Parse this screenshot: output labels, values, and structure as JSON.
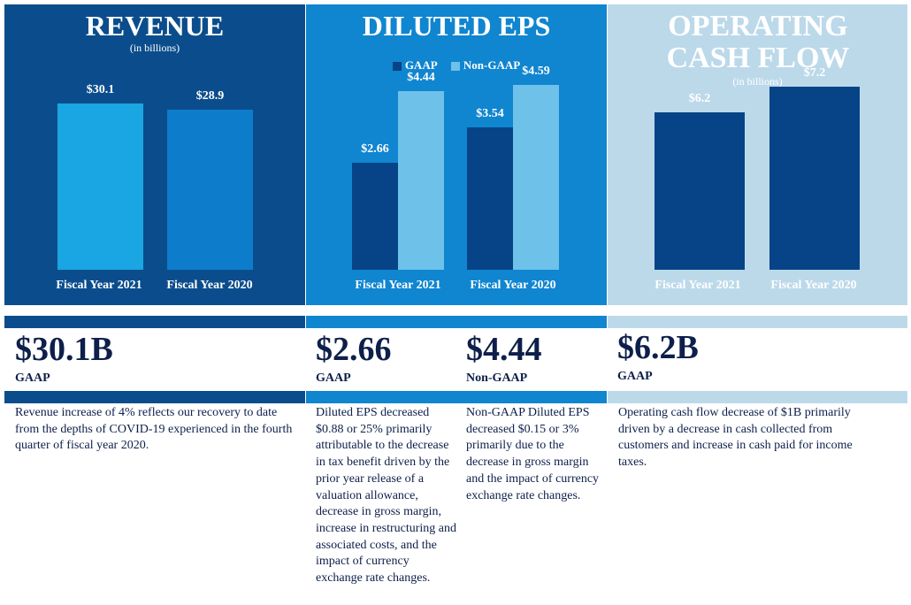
{
  "colors": {
    "navy": "#0b4d8c",
    "blue": "#1085d0",
    "light": "#bcd9ea",
    "bar_dark": "#064487",
    "bar_cyan": "#19a6e2",
    "bar_mid": "#0d7dcb",
    "bar_light": "#6ec1e8",
    "ink": "#0d1f4a"
  },
  "chart_data": [
    {
      "type": "bar",
      "title": "REVENUE",
      "subtitle": "(in billions)",
      "categories": [
        "Fiscal Year 2021",
        "Fiscal Year 2020"
      ],
      "values": [
        30.1,
        28.9
      ],
      "labels": [
        "$30.1",
        "$28.9"
      ],
      "ylim": [
        0,
        40
      ]
    },
    {
      "type": "bar",
      "title": "DILUTED EPS",
      "categories": [
        "Fiscal Year 2021",
        "Fiscal Year 2020"
      ],
      "series": [
        {
          "name": "GAAP",
          "values": [
            2.66,
            3.54
          ],
          "labels": [
            "$2.66",
            "$3.54"
          ]
        },
        {
          "name": "Non-GAAP",
          "values": [
            4.44,
            4.59
          ],
          "labels": [
            "$4.44",
            "$4.59"
          ]
        }
      ],
      "ylim": [
        0,
        5.5
      ]
    },
    {
      "type": "bar",
      "title": "OPERATING CASH FLOW",
      "subtitle": "(in billions)",
      "categories": [
        "Fiscal Year 2021",
        "Fiscal Year 2020"
      ],
      "values": [
        6.2,
        7.2
      ],
      "labels": [
        "$6.2",
        "$7.2"
      ],
      "ylim": [
        0,
        8.7
      ]
    }
  ],
  "summary": {
    "revenue": {
      "value": "$30.1B",
      "label": "GAAP",
      "text": "Revenue increase of 4% reflects our recovery to date from the depths of COVID-19 experienced in the fourth quarter of fiscal year 2020."
    },
    "eps_gaap": {
      "value": "$2.66",
      "label": "GAAP",
      "text": "Diluted EPS decreased $0.88 or 25% primarily attributable to the decrease in tax benefit driven by the prior year release of a valuation allowance, decrease in gross margin, increase in restructuring and associated costs, and the impact of currency exchange rate changes."
    },
    "eps_nongaap": {
      "value": "$4.44",
      "label": "Non-GAAP",
      "text": "Non-GAAP Diluted EPS decreased $0.15 or 3% primarily due to the decrease in gross margin and the impact of currency exchange rate changes."
    },
    "cashflow": {
      "value": "$6.2B",
      "label": "GAAP",
      "text": "Operating cash flow decrease of $1B primarily driven by a decrease in cash collected from customers and increase in cash paid for income taxes."
    }
  }
}
